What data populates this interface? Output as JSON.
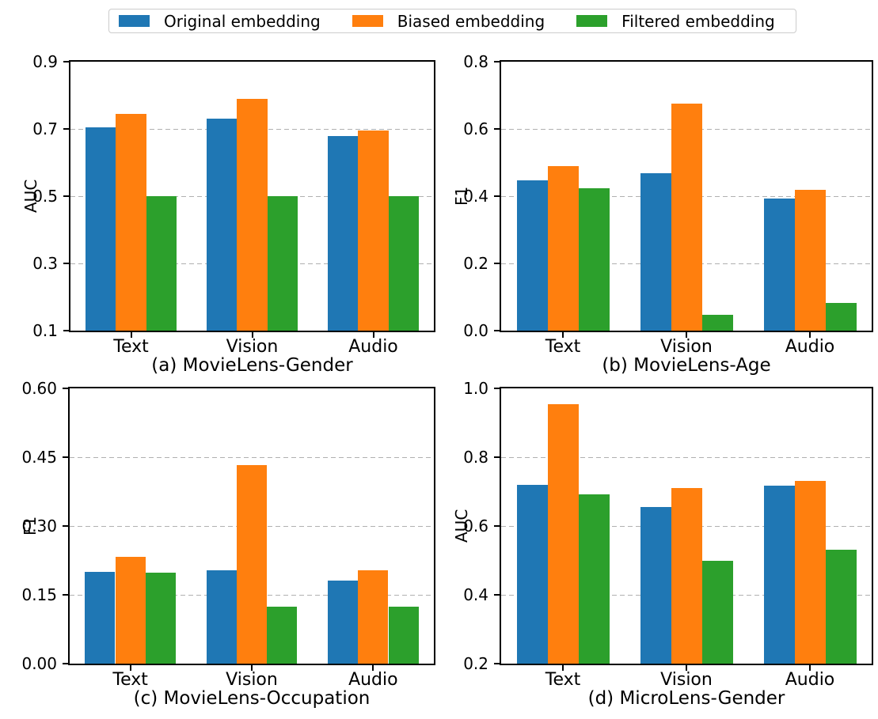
{
  "legend": {
    "items": [
      {
        "label": "Original embedding",
        "color": "#1f77b4"
      },
      {
        "label": "Biased embedding",
        "color": "#ff7f0e"
      },
      {
        "label": "Filtered embedding",
        "color": "#2ca02c"
      }
    ]
  },
  "chart_data": [
    {
      "type": "bar",
      "title": "(a) MovieLens-Gender",
      "ylabel": "AUC",
      "categories": [
        "Text",
        "Vision",
        "Audio"
      ],
      "series": [
        {
          "name": "Original embedding",
          "values": [
            0.705,
            0.73,
            0.68
          ]
        },
        {
          "name": "Biased embedding",
          "values": [
            0.745,
            0.79,
            0.695
          ]
        },
        {
          "name": "Filtered embedding",
          "values": [
            0.5,
            0.5,
            0.5
          ]
        }
      ],
      "ylim": [
        0.1,
        0.9
      ],
      "yticks": [
        "0.1",
        "0.3",
        "0.5",
        "0.7",
        "0.9"
      ],
      "grid": "horizontal-dashed",
      "legend_position": "shared-top"
    },
    {
      "type": "bar",
      "title": "(b) MovieLens-Age",
      "ylabel": "F1",
      "categories": [
        "Text",
        "Vision",
        "Audio"
      ],
      "series": [
        {
          "name": "Original embedding",
          "values": [
            0.446,
            0.469,
            0.394
          ]
        },
        {
          "name": "Biased embedding",
          "values": [
            0.49,
            0.676,
            0.418
          ]
        },
        {
          "name": "Filtered embedding",
          "values": [
            0.424,
            0.046,
            0.082
          ]
        }
      ],
      "ylim": [
        0.0,
        0.8
      ],
      "yticks": [
        "0.0",
        "0.2",
        "0.4",
        "0.6",
        "0.8"
      ],
      "grid": "horizontal-dashed",
      "legend_position": "shared-top"
    },
    {
      "type": "bar",
      "title": "(c) MovieLens-Occupation",
      "ylabel": "F1",
      "categories": [
        "Text",
        "Vision",
        "Audio"
      ],
      "series": [
        {
          "name": "Original embedding",
          "values": [
            0.2,
            0.204,
            0.181
          ]
        },
        {
          "name": "Biased embedding",
          "values": [
            0.233,
            0.433,
            0.203
          ]
        },
        {
          "name": "Filtered embedding",
          "values": [
            0.198,
            0.125,
            0.125
          ]
        }
      ],
      "ylim": [
        0.0,
        0.6
      ],
      "yticks": [
        "0.00",
        "0.15",
        "0.30",
        "0.45",
        "0.60"
      ],
      "grid": "horizontal-dashed",
      "legend_position": "shared-top"
    },
    {
      "type": "bar",
      "title": "(d) MicroLens-Gender",
      "ylabel": "AUC",
      "categories": [
        "Text",
        "Vision",
        "Audio"
      ],
      "series": [
        {
          "name": "Original embedding",
          "values": [
            0.72,
            0.655,
            0.718
          ]
        },
        {
          "name": "Biased embedding",
          "values": [
            0.953,
            0.71,
            0.73
          ]
        },
        {
          "name": "Filtered embedding",
          "values": [
            0.692,
            0.5,
            0.53
          ]
        }
      ],
      "ylim": [
        0.2,
        1.0
      ],
      "yticks": [
        "0.2",
        "0.4",
        "0.6",
        "0.8",
        "1.0"
      ],
      "grid": "horizontal-dashed",
      "legend_position": "shared-top"
    }
  ]
}
